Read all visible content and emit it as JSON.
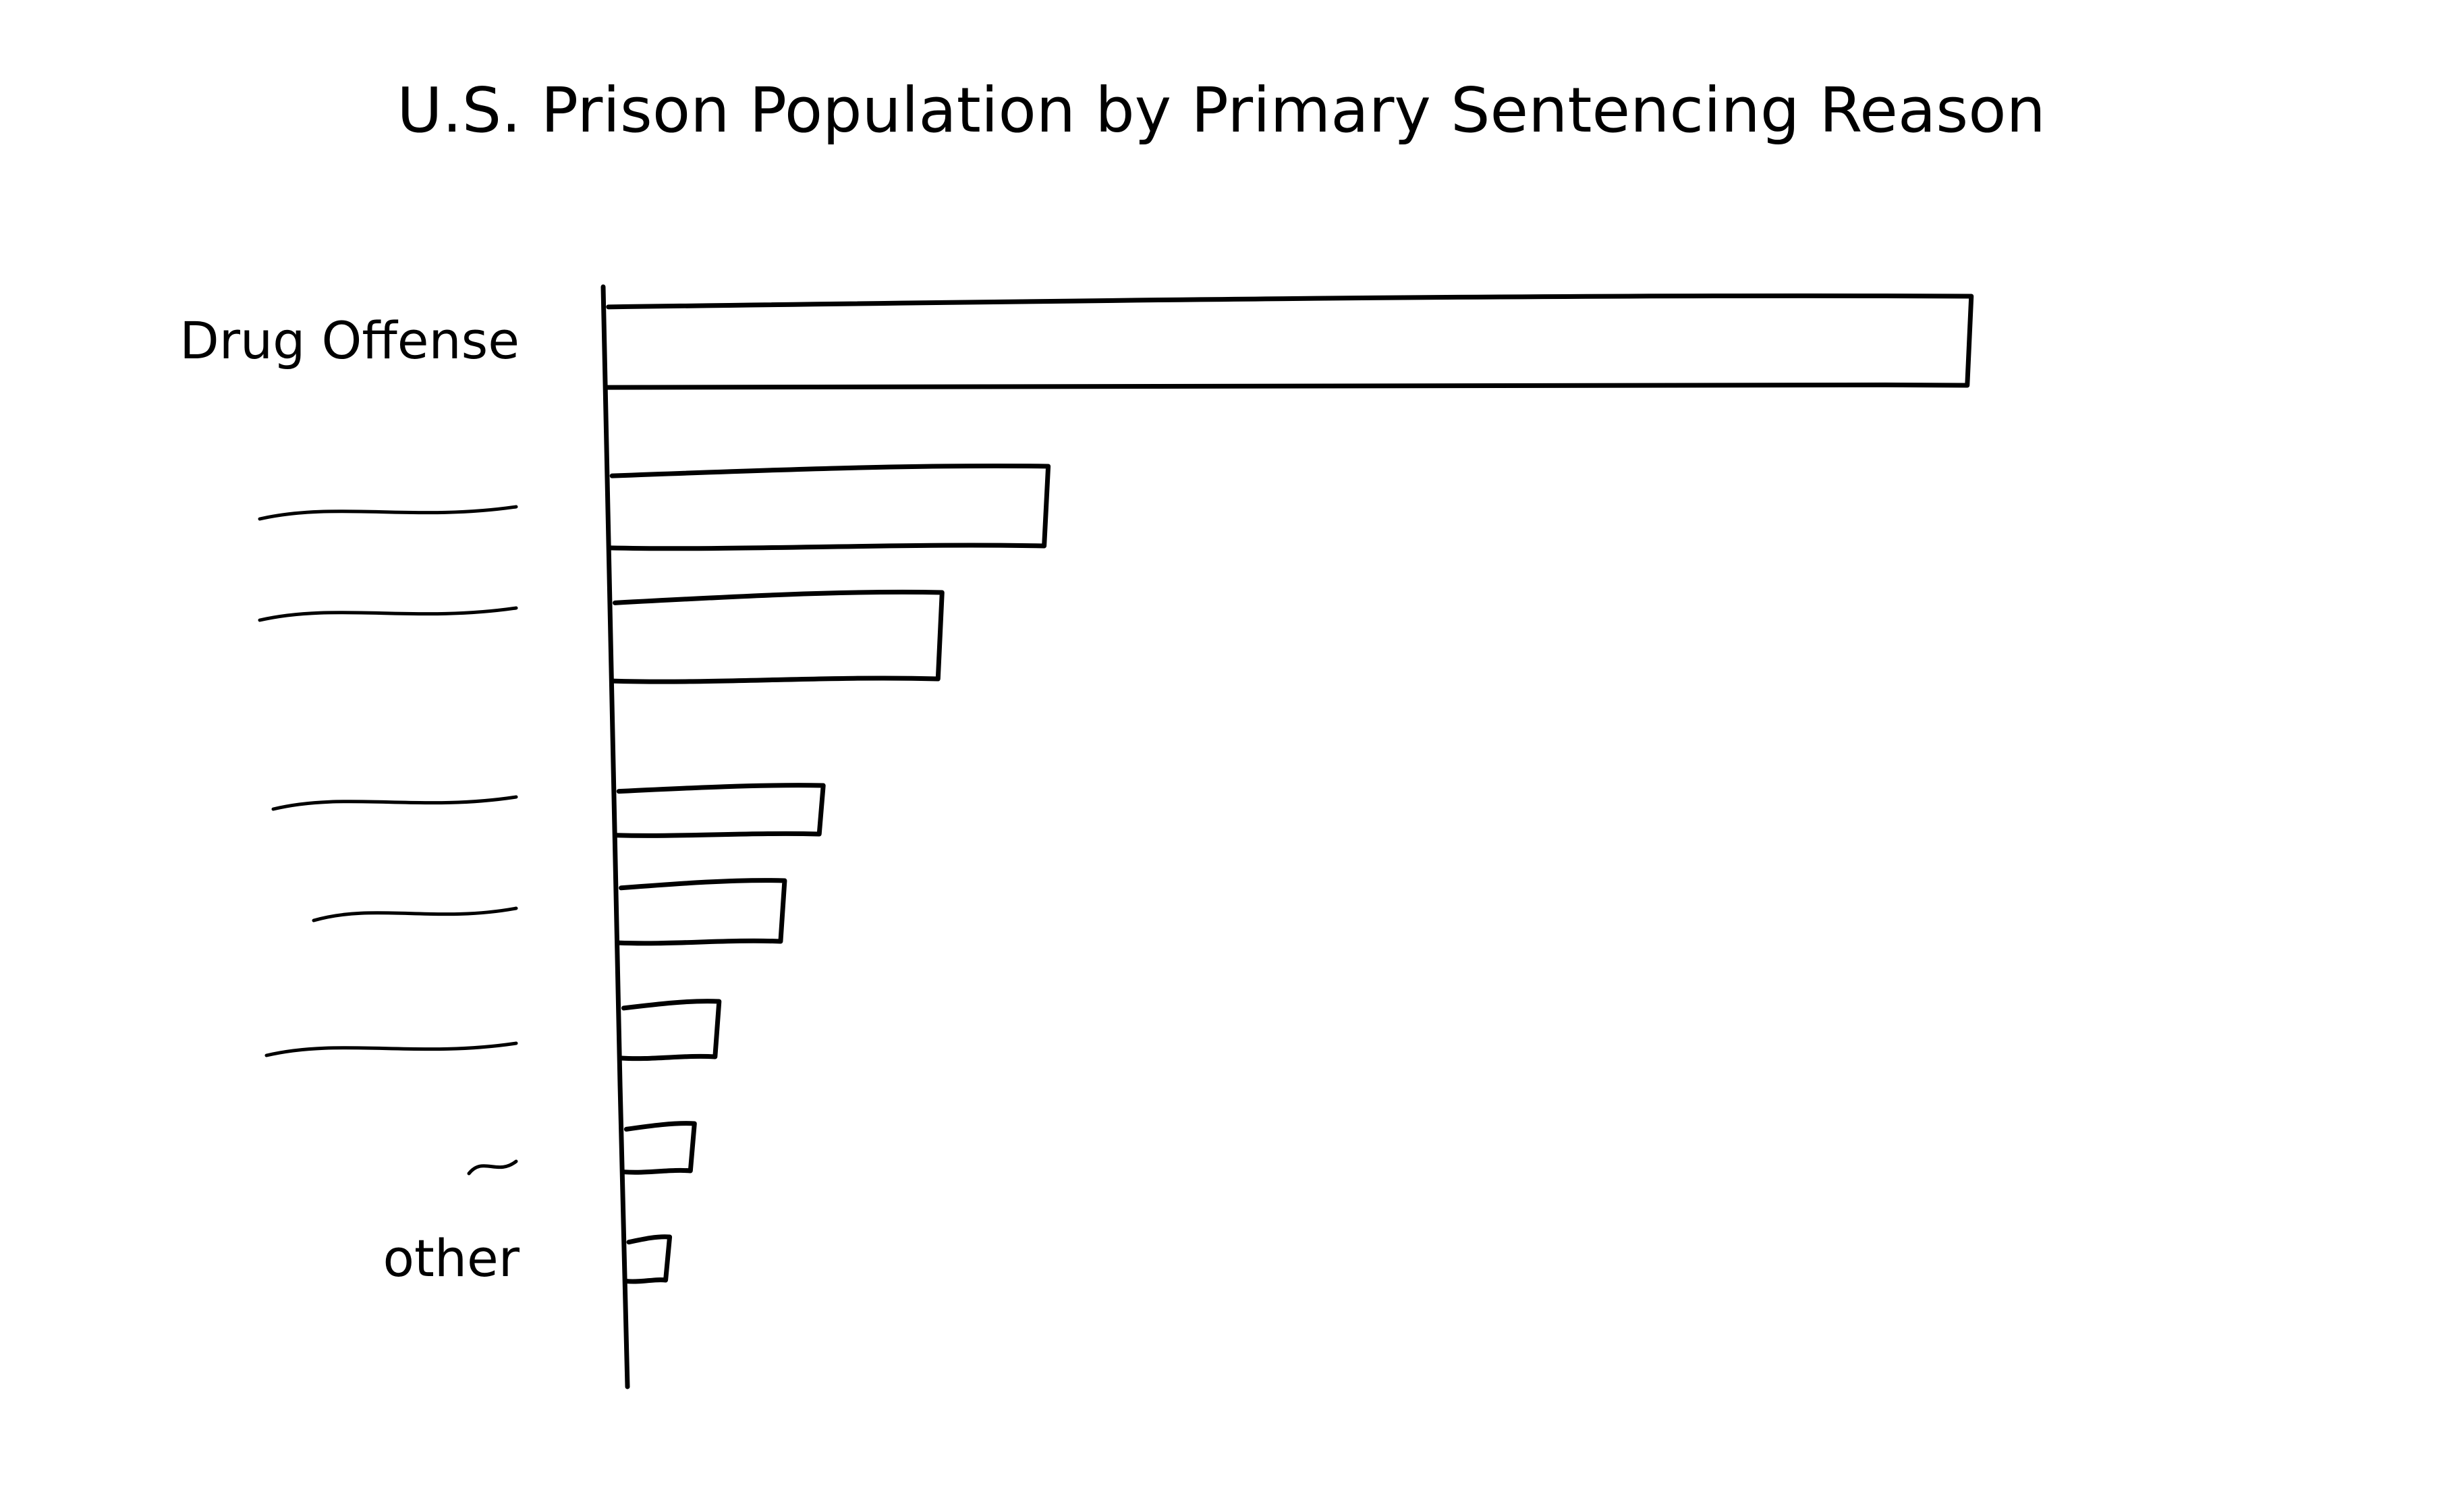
{
  "chart_data": {
    "type": "bar",
    "orientation": "horizontal",
    "title": "U.S. Prison Population by Primary Sentencing Reason",
    "categories": [
      "Drug Offense",
      "",
      "",
      "",
      "",
      "",
      "",
      "other"
    ],
    "values": [
      100,
      32,
      24,
      15,
      12,
      7,
      5,
      3
    ],
    "xlabel": "",
    "ylabel": "",
    "grid": false,
    "legend": "none",
    "color": "#000000"
  }
}
